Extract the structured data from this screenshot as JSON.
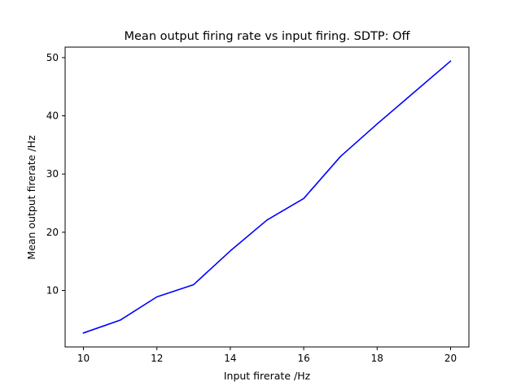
{
  "chart_data": {
    "type": "line",
    "title": "Mean output firing rate vs input firing. SDTP: Off",
    "xlabel": "Input firerate /Hz",
    "ylabel": "Mean output firerate /Hz",
    "xlim": [
      9.5,
      20.5
    ],
    "ylim": [
      0.3,
      51.8
    ],
    "xticks": [
      10,
      12,
      14,
      16,
      18,
      20
    ],
    "yticks": [
      10,
      20,
      30,
      40,
      50
    ],
    "grid": false,
    "series": [
      {
        "color": "#0000ff",
        "x": [
          10,
          11,
          12,
          13,
          14,
          15,
          16,
          17,
          18,
          19,
          20
        ],
        "y": [
          2.7,
          4.9,
          8.9,
          11.0,
          16.8,
          22.1,
          25.8,
          33.0,
          38.6,
          44.0,
          49.4
        ]
      }
    ]
  }
}
